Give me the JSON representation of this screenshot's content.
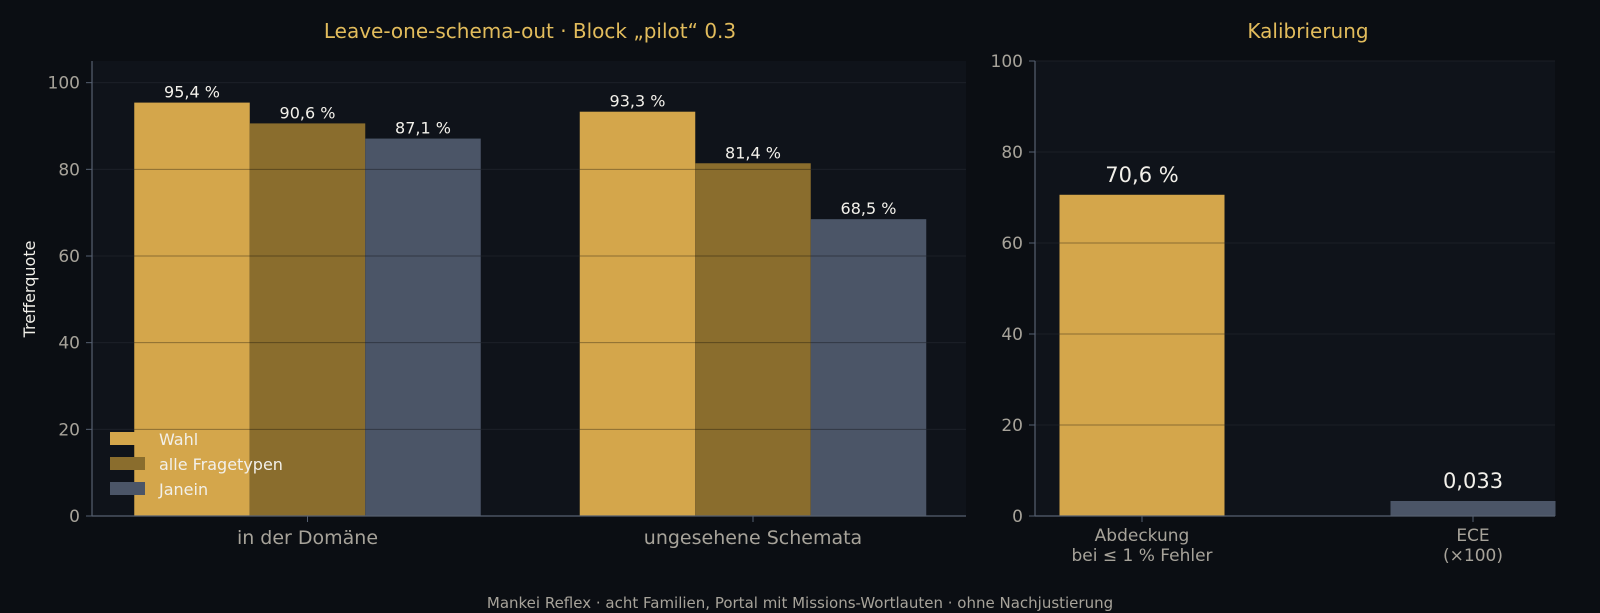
{
  "footer": "Mankei Reflex · acht Familien, Portal mit Missions-Wortlauten · ohne Nachjustierung",
  "colors": {
    "background": "#0b0e13",
    "panel": "#0f131a",
    "title": "#e2bc5c",
    "gold": "#d4a64b",
    "dark_gold": "#8a6d2d",
    "slate": "#4b5567",
    "grid": "#2a303b",
    "axis": "#566070",
    "tick_text": "#a7a39a",
    "label_text": "#f2f0ea"
  },
  "chart_data": [
    {
      "type": "bar",
      "title": "Leave-one-schema-out · Block „pilot“ 0.3",
      "xlabel": "",
      "ylabel": "Trefferquote",
      "ylim": [
        0,
        105
      ],
      "yticks": [
        0,
        20,
        40,
        60,
        80,
        100
      ],
      "grid": true,
      "legend": "bottom-left",
      "categories": [
        "in der Domäne",
        "ungesehene Schemata"
      ],
      "series": [
        {
          "name": "Wahl",
          "values": [
            95.4,
            93.3
          ],
          "labels": [
            "95,4 %",
            "93,3 %"
          ],
          "color": "#d4a64b"
        },
        {
          "name": "alle Fragetypen",
          "values": [
            90.6,
            81.4
          ],
          "labels": [
            "90,6 %",
            "81,4 %"
          ],
          "color": "#8a6d2d"
        },
        {
          "name": "Janein",
          "values": [
            87.1,
            68.5
          ],
          "labels": [
            "87,1 %",
            "68,5 %"
          ],
          "color": "#4b5567"
        }
      ]
    },
    {
      "type": "bar",
      "title": "Kalibrierung",
      "xlabel": "",
      "ylabel": "",
      "ylim": [
        0,
        100
      ],
      "yticks": [
        0,
        20,
        40,
        60,
        80,
        100
      ],
      "grid": true,
      "categories": [
        [
          "Abdeckung",
          "bei ≤ 1 % Fehler"
        ],
        [
          "ECE",
          "(×100)"
        ]
      ],
      "values": [
        70.6,
        3.3
      ],
      "labels": [
        "70,6 %",
        "0,033"
      ],
      "colors": [
        "#d4a64b",
        "#4b5567"
      ]
    }
  ]
}
